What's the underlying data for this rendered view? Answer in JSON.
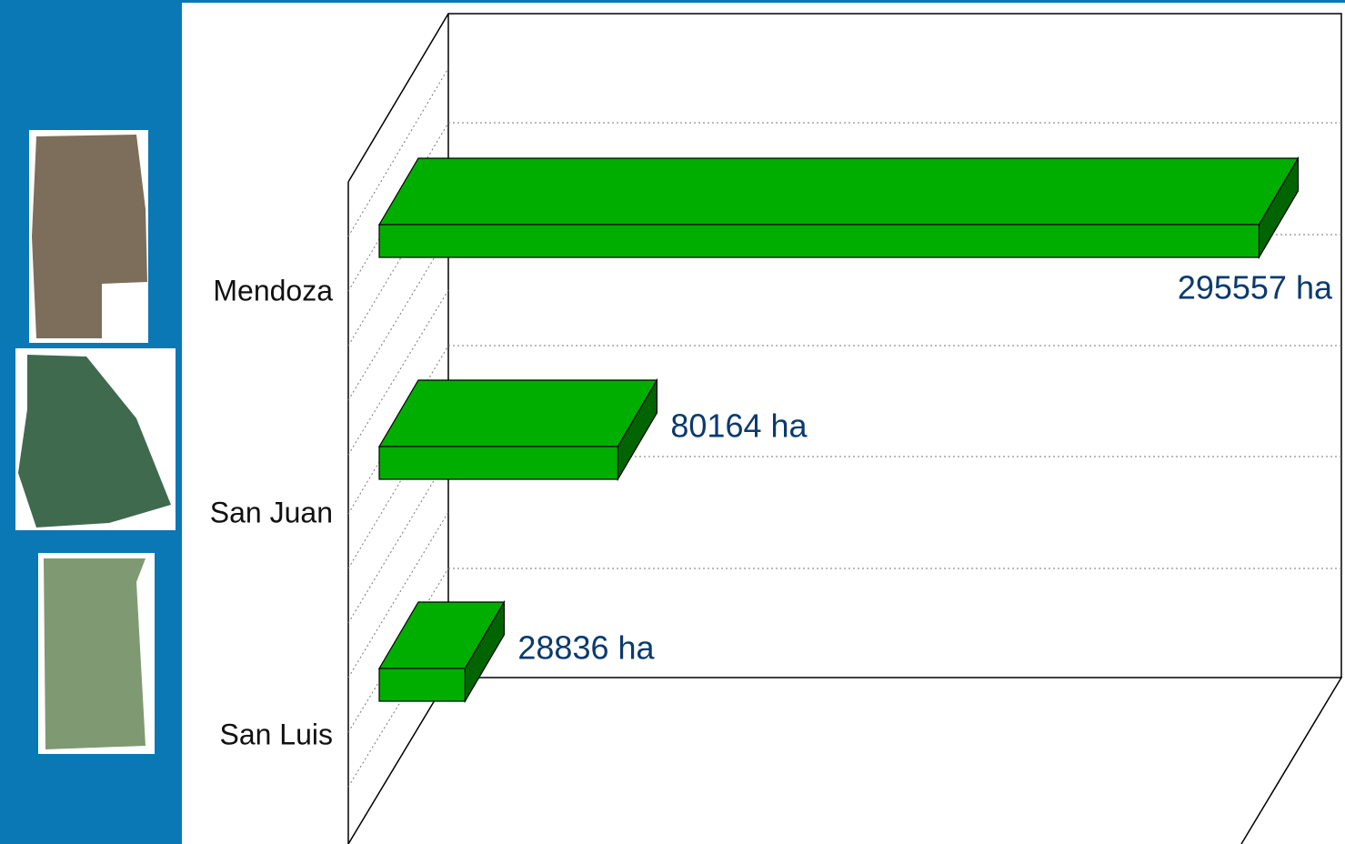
{
  "chart_data": {
    "type": "bar3d",
    "orientation": "horizontal",
    "categories": [
      "Mendoza",
      "San Juan",
      "San Luis"
    ],
    "values": [
      295557,
      80164,
      28836
    ],
    "value_labels": [
      "295557 ha",
      "80164 ha",
      "28836 ha"
    ],
    "color": "#00ae00",
    "xlim": [
      0,
      300000
    ]
  }
}
